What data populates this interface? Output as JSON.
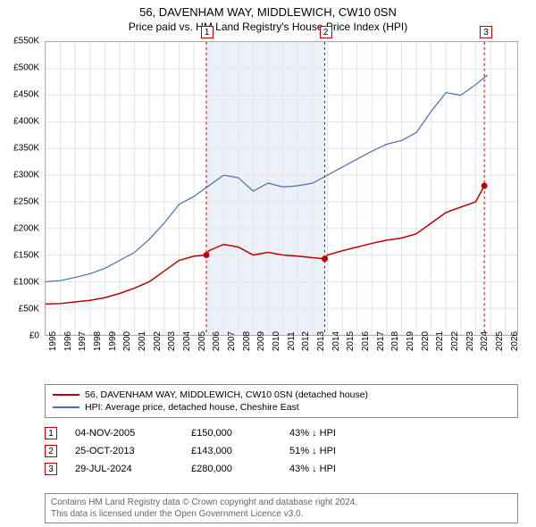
{
  "title": "56, DAVENHAM WAY, MIDDLEWICH, CW10 0SN",
  "subtitle": "Price paid vs. HM Land Registry's House Price Index (HPI)",
  "chart": {
    "type": "line",
    "background_color": "#ffffff",
    "grid_color": "#e4e4e4",
    "border_color": "#b0b0b0",
    "x_years": [
      1995,
      1996,
      1997,
      1998,
      1999,
      2000,
      2001,
      2002,
      2003,
      2004,
      2005,
      2006,
      2007,
      2008,
      2009,
      2010,
      2011,
      2012,
      2013,
      2014,
      2015,
      2016,
      2017,
      2018,
      2019,
      2020,
      2021,
      2022,
      2023,
      2024,
      2025,
      2026
    ],
    "xlim": [
      1995,
      2026.8
    ],
    "ylim": [
      0,
      550000
    ],
    "ytick_step": 50000,
    "y_prefix": "£",
    "y_suffix": "K",
    "label_fontsize": 10,
    "highlight_band": {
      "from": 2005.8,
      "to": 2013.8,
      "color": "#e0e8f5",
      "opacity": 0.6
    },
    "sale_markers": [
      {
        "idx": "1",
        "year": 2005.84,
        "ytop": 1.0,
        "border_color": "#c00000"
      },
      {
        "idx": "2",
        "year": 2013.82,
        "ytop": 1.0,
        "border_color": "#c00000"
      },
      {
        "idx": "3",
        "year": 2024.58,
        "ytop": 1.0,
        "border_color": "#c00000"
      }
    ],
    "series": [
      {
        "name": "price_paid",
        "label": "56, DAVENHAM WAY, MIDDLEWICH, CW10 0SN (detached house)",
        "color": "#c00000",
        "line_width": 1.5,
        "points": [
          [
            1995,
            58000
          ],
          [
            1996,
            59000
          ],
          [
            1997,
            62000
          ],
          [
            1998,
            65000
          ],
          [
            1999,
            70000
          ],
          [
            2000,
            78000
          ],
          [
            2001,
            88000
          ],
          [
            2002,
            100000
          ],
          [
            2003,
            120000
          ],
          [
            2004,
            140000
          ],
          [
            2005,
            148000
          ],
          [
            2005.84,
            150000
          ],
          [
            2006,
            158000
          ],
          [
            2007,
            170000
          ],
          [
            2008,
            165000
          ],
          [
            2009,
            150000
          ],
          [
            2010,
            155000
          ],
          [
            2011,
            150000
          ],
          [
            2012,
            148000
          ],
          [
            2013,
            145000
          ],
          [
            2013.82,
            143000
          ],
          [
            2014,
            150000
          ],
          [
            2015,
            158000
          ],
          [
            2016,
            165000
          ],
          [
            2017,
            172000
          ],
          [
            2018,
            178000
          ],
          [
            2019,
            182000
          ],
          [
            2020,
            190000
          ],
          [
            2021,
            210000
          ],
          [
            2022,
            230000
          ],
          [
            2023,
            240000
          ],
          [
            2024,
            250000
          ],
          [
            2024.58,
            280000
          ]
        ],
        "dots": [
          {
            "x": 2005.84,
            "y": 150000
          },
          {
            "x": 2013.82,
            "y": 143000
          },
          {
            "x": 2024.58,
            "y": 280000
          }
        ]
      },
      {
        "name": "hpi",
        "label": "HPI: Average price, detached house, Cheshire East",
        "color": "#4a6fb0",
        "line_width": 1.2,
        "points": [
          [
            1995,
            100000
          ],
          [
            1996,
            102000
          ],
          [
            1997,
            108000
          ],
          [
            1998,
            115000
          ],
          [
            1999,
            125000
          ],
          [
            2000,
            140000
          ],
          [
            2001,
            155000
          ],
          [
            2002,
            180000
          ],
          [
            2003,
            210000
          ],
          [
            2004,
            245000
          ],
          [
            2005,
            260000
          ],
          [
            2006,
            280000
          ],
          [
            2007,
            300000
          ],
          [
            2008,
            295000
          ],
          [
            2009,
            270000
          ],
          [
            2010,
            285000
          ],
          [
            2011,
            278000
          ],
          [
            2012,
            280000
          ],
          [
            2013,
            285000
          ],
          [
            2014,
            300000
          ],
          [
            2015,
            315000
          ],
          [
            2016,
            330000
          ],
          [
            2017,
            345000
          ],
          [
            2018,
            358000
          ],
          [
            2019,
            365000
          ],
          [
            2020,
            380000
          ],
          [
            2021,
            420000
          ],
          [
            2022,
            455000
          ],
          [
            2023,
            450000
          ],
          [
            2024,
            470000
          ],
          [
            2024.8,
            488000
          ]
        ]
      }
    ]
  },
  "legend": {
    "border_color": "#888888",
    "items": [
      {
        "color": "#c00000",
        "label": "56, DAVENHAM WAY, MIDDLEWICH, CW10 0SN (detached house)"
      },
      {
        "color": "#4a6fb0",
        "label": "HPI: Average price, detached house, Cheshire East"
      }
    ]
  },
  "sales": [
    {
      "idx": "1",
      "border_color": "#c00000",
      "date": "04-NOV-2005",
      "price": "£150,000",
      "diff": "43% ↓ HPI"
    },
    {
      "idx": "2",
      "border_color": "#c00000",
      "date": "25-OCT-2013",
      "price": "£143,000",
      "diff": "51% ↓ HPI"
    },
    {
      "idx": "3",
      "border_color": "#c00000",
      "date": "29-JUL-2024",
      "price": "£280,000",
      "diff": "43% ↓ HPI"
    }
  ],
  "footer_line1": "Contains HM Land Registry data © Crown copyright and database right 2024.",
  "footer_line2": "This data is licensed under the Open Government Licence v3.0."
}
